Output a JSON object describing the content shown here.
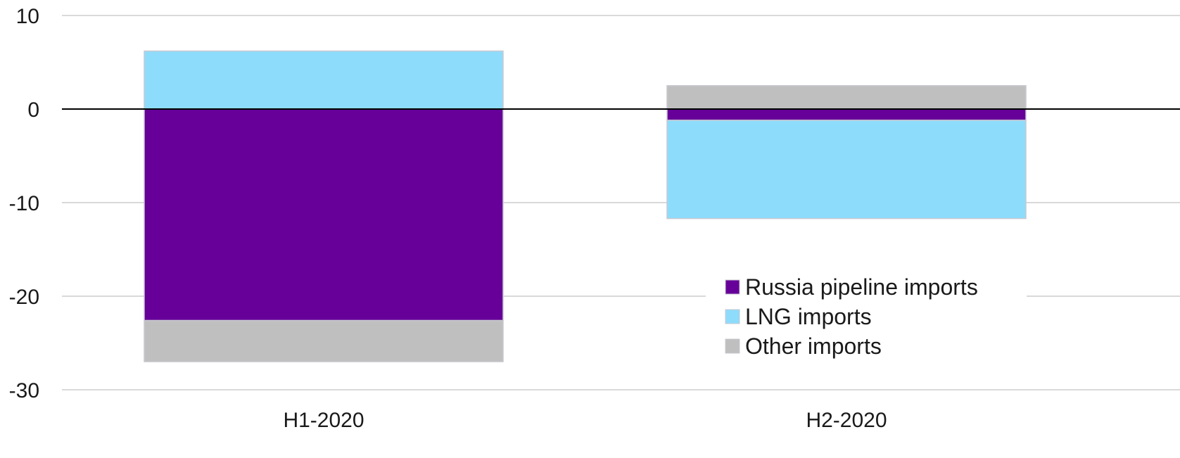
{
  "chart_data": {
    "type": "bar",
    "stacked": true,
    "categories": [
      "H1-2020",
      "H2-2020"
    ],
    "series": [
      {
        "name": "Russia pipeline imports",
        "values": [
          -22.6,
          -1.2
        ],
        "color": "#660099"
      },
      {
        "name": "LNG imports",
        "values": [
          6.2,
          -10.5
        ],
        "color": "#8DDCFC"
      },
      {
        "name": "Other imports",
        "values": [
          -4.4,
          2.5
        ],
        "color": "#BFBFBF"
      }
    ],
    "ylim": [
      -30,
      10
    ],
    "yticks": [
      10,
      0,
      -10,
      -20,
      -30
    ],
    "grid": true,
    "zero_line": true,
    "legend_position": "inside-center-right",
    "title": "",
    "xlabel": "",
    "ylabel": ""
  }
}
